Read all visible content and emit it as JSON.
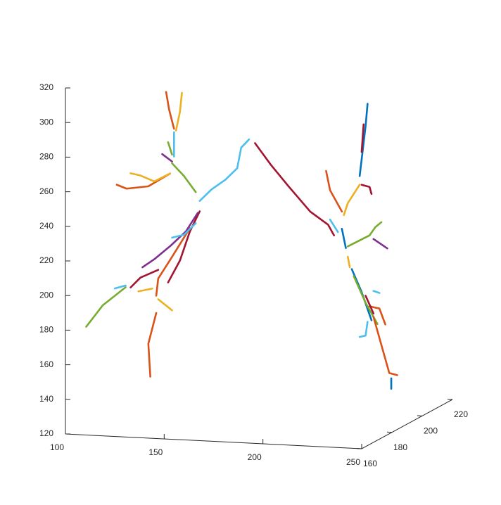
{
  "chart_data": {
    "type": "line3d",
    "xlim": [
      100,
      250
    ],
    "xticks": [
      100,
      150,
      200,
      250
    ],
    "ylim": [
      160,
      220
    ],
    "yticks": [
      160,
      180,
      200,
      220
    ],
    "zlim": [
      120,
      320
    ],
    "zticks": [
      120,
      140,
      160,
      180,
      200,
      220,
      240,
      260,
      280,
      300,
      320
    ],
    "grid": false,
    "series": [
      {
        "color": "#4DBEEE",
        "x": [
          145,
          151,
          158,
          164,
          166,
          170
        ],
        "y": [
          190,
          190,
          190,
          190,
          190,
          190
        ],
        "z": [
          243,
          250,
          256,
          263,
          275,
          280
        ]
      },
      {
        "color": "#A2142F",
        "x": [
          173,
          181,
          190,
          201,
          210,
          213
        ],
        "y": [
          190,
          190,
          190,
          190,
          190,
          190
        ],
        "z": [
          278,
          266,
          254,
          240,
          233,
          227
        ]
      },
      {
        "color": "#A2142F",
        "x": [
          145,
          140,
          135,
          129
        ],
        "y": [
          190,
          190,
          190,
          190
        ],
        "z": [
          237,
          225,
          208,
          195
        ]
      },
      {
        "color": "#7E2F8E",
        "x": [
          144,
          138,
          130,
          122,
          116
        ],
        "y": [
          190,
          190,
          190,
          190,
          190
        ],
        "z": [
          236,
          225,
          216,
          208,
          203
        ]
      },
      {
        "color": "#D95319",
        "x": [
          140,
          130,
          124,
          123
        ],
        "y": [
          190,
          190,
          190,
          190
        ],
        "z": [
          227,
          208,
          197,
          187
        ]
      },
      {
        "color": "#A2142F",
        "x": [
          124,
          115,
          110
        ],
        "y": [
          190,
          190,
          190
        ],
        "z": [
          202,
          197,
          191
        ]
      },
      {
        "color": "#77AC30",
        "x": [
          107.5,
          96,
          87.5
        ],
        "y": [
          190,
          190,
          190
        ],
        "z": [
          191,
          180,
          167
        ]
      },
      {
        "color": "#4DBEEE",
        "x": [
          102,
          107.5
        ],
        "y": [
          190,
          190
        ],
        "z": [
          190,
          192
        ]
      },
      {
        "color": "#EDB120",
        "x": [
          114,
          121
        ],
        "y": [
          190,
          190
        ],
        "z": [
          189,
          191
        ]
      },
      {
        "color": "#EDB120",
        "x": [
          124,
          131
        ],
        "y": [
          190,
          190
        ],
        "z": [
          185,
          179
        ]
      },
      {
        "color": "#D95319",
        "x": [
          123,
          119,
          120
        ],
        "y": [
          190,
          190,
          190
        ],
        "z": [
          177,
          159,
          140
        ]
      },
      {
        "color": "#4DBEEE",
        "x": [
          131,
          137,
          143
        ],
        "y": [
          190,
          190,
          190
        ],
        "z": [
          221,
          223,
          230
        ]
      },
      {
        "color": "#77AC30",
        "x": [
          131,
          137,
          143
        ],
        "y": [
          190,
          190,
          190
        ],
        "z": [
          264,
          257,
          248
        ]
      },
      {
        "color": "#D95319",
        "x": [
          103,
          108,
          119,
          130
        ],
        "y": [
          190,
          190,
          190,
          190
        ],
        "z": [
          250,
          248,
          250,
          258
        ]
      },
      {
        "color": "#EDB120",
        "x": [
          110,
          115,
          122,
          130
        ],
        "y": [
          190,
          190,
          190,
          190
        ],
        "z": [
          257,
          256,
          253,
          258
        ]
      },
      {
        "color": "#7E2F8E",
        "x": [
          126,
          131
        ],
        "y": [
          190,
          190
        ],
        "z": [
          269,
          265
        ]
      },
      {
        "color": "#77AC30",
        "x": [
          129,
          131
        ],
        "y": [
          190,
          190
        ],
        "z": [
          276,
          269
        ]
      },
      {
        "color": "#4DBEEE",
        "x": [
          132,
          132
        ],
        "y": [
          190,
          190
        ],
        "z": [
          282,
          268
        ]
      },
      {
        "color": "#D95319",
        "x": [
          128,
          129.5,
          132
        ],
        "y": [
          190,
          190,
          190
        ],
        "z": [
          305,
          295,
          284
        ]
      },
      {
        "color": "#EDB120",
        "x": [
          136,
          135,
          133
        ],
        "y": [
          190,
          190,
          190
        ],
        "z": [
          305,
          294,
          283
        ]
      },
      {
        "color": "#0072BD",
        "x": [
          230,
          229,
          226
        ],
        "y": [
          190,
          190,
          190
        ],
        "z": [
          304,
          291,
          262
        ]
      },
      {
        "color": "#A2142F",
        "x": [
          228,
          227
        ],
        "y": [
          190,
          190
        ],
        "z": [
          292,
          276
        ]
      },
      {
        "color": "#D95319",
        "x": [
          209,
          211,
          217
        ],
        "y": [
          190,
          190,
          190
        ],
        "z": [
          264,
          253,
          241
        ]
      },
      {
        "color": "#EDB120",
        "x": [
          226,
          220,
          218
        ],
        "y": [
          190,
          190,
          190
        ],
        "z": [
          257,
          246,
          239
        ]
      },
      {
        "color": "#A2142F",
        "x": [
          227,
          231,
          232
        ],
        "y": [
          190,
          190,
          190
        ],
        "z": [
          257,
          256,
          252
        ]
      },
      {
        "color": "#4DBEEE",
        "x": [
          211,
          215
        ],
        "y": [
          190,
          190
        ],
        "z": [
          236,
          229
        ]
      },
      {
        "color": "#0072BD",
        "x": [
          217,
          219
        ],
        "y": [
          190,
          190
        ],
        "z": [
          231,
          220
        ]
      },
      {
        "color": "#77AC30",
        "x": [
          220,
          231,
          234,
          237
        ],
        "y": [
          190,
          190,
          190,
          190
        ],
        "z": [
          221,
          228,
          233,
          236
        ]
      },
      {
        "color": "#7E2F8E",
        "x": [
          233,
          240
        ],
        "y": [
          190,
          190
        ],
        "z": [
          226,
          221
        ]
      },
      {
        "color": "#EDB120",
        "x": [
          220,
          221
        ],
        "y": [
          190,
          190
        ],
        "z": [
          215,
          209
        ]
      },
      {
        "color": "#0072BD",
        "x": [
          222,
          227,
          232
        ],
        "y": [
          190,
          190,
          190
        ],
        "z": [
          208,
          195,
          179
        ]
      },
      {
        "color": "#77AC30",
        "x": [
          223,
          229,
          235
        ],
        "y": [
          190,
          190,
          190
        ],
        "z": [
          204,
          189,
          177
        ]
      },
      {
        "color": "#D95319",
        "x": [
          231,
          236,
          239
        ],
        "y": [
          190,
          190,
          190
        ],
        "z": [
          187,
          186,
          177
        ]
      },
      {
        "color": "#A2142F",
        "x": [
          229,
          233
        ],
        "y": [
          190,
          190
        ],
        "z": [
          193,
          183
        ]
      },
      {
        "color": "#4DBEEE",
        "x": [
          233,
          236
        ],
        "y": [
          190,
          190
        ],
        "z": [
          196,
          195
        ]
      },
      {
        "color": "#4DBEEE",
        "x": [
          230,
          229,
          226
        ],
        "y": [
          190,
          190,
          190
        ],
        "z": [
          178,
          170,
          169
        ]
      },
      {
        "color": "#D95319",
        "x": [
          233,
          236,
          241,
          245
        ],
        "y": [
          190,
          190,
          190,
          190
        ],
        "z": [
          181,
          169,
          149,
          148
        ]
      },
      {
        "color": "#0072BD",
        "x": [
          242,
          242
        ],
        "y": [
          190,
          190
        ],
        "z": [
          146,
          140
        ]
      }
    ]
  }
}
